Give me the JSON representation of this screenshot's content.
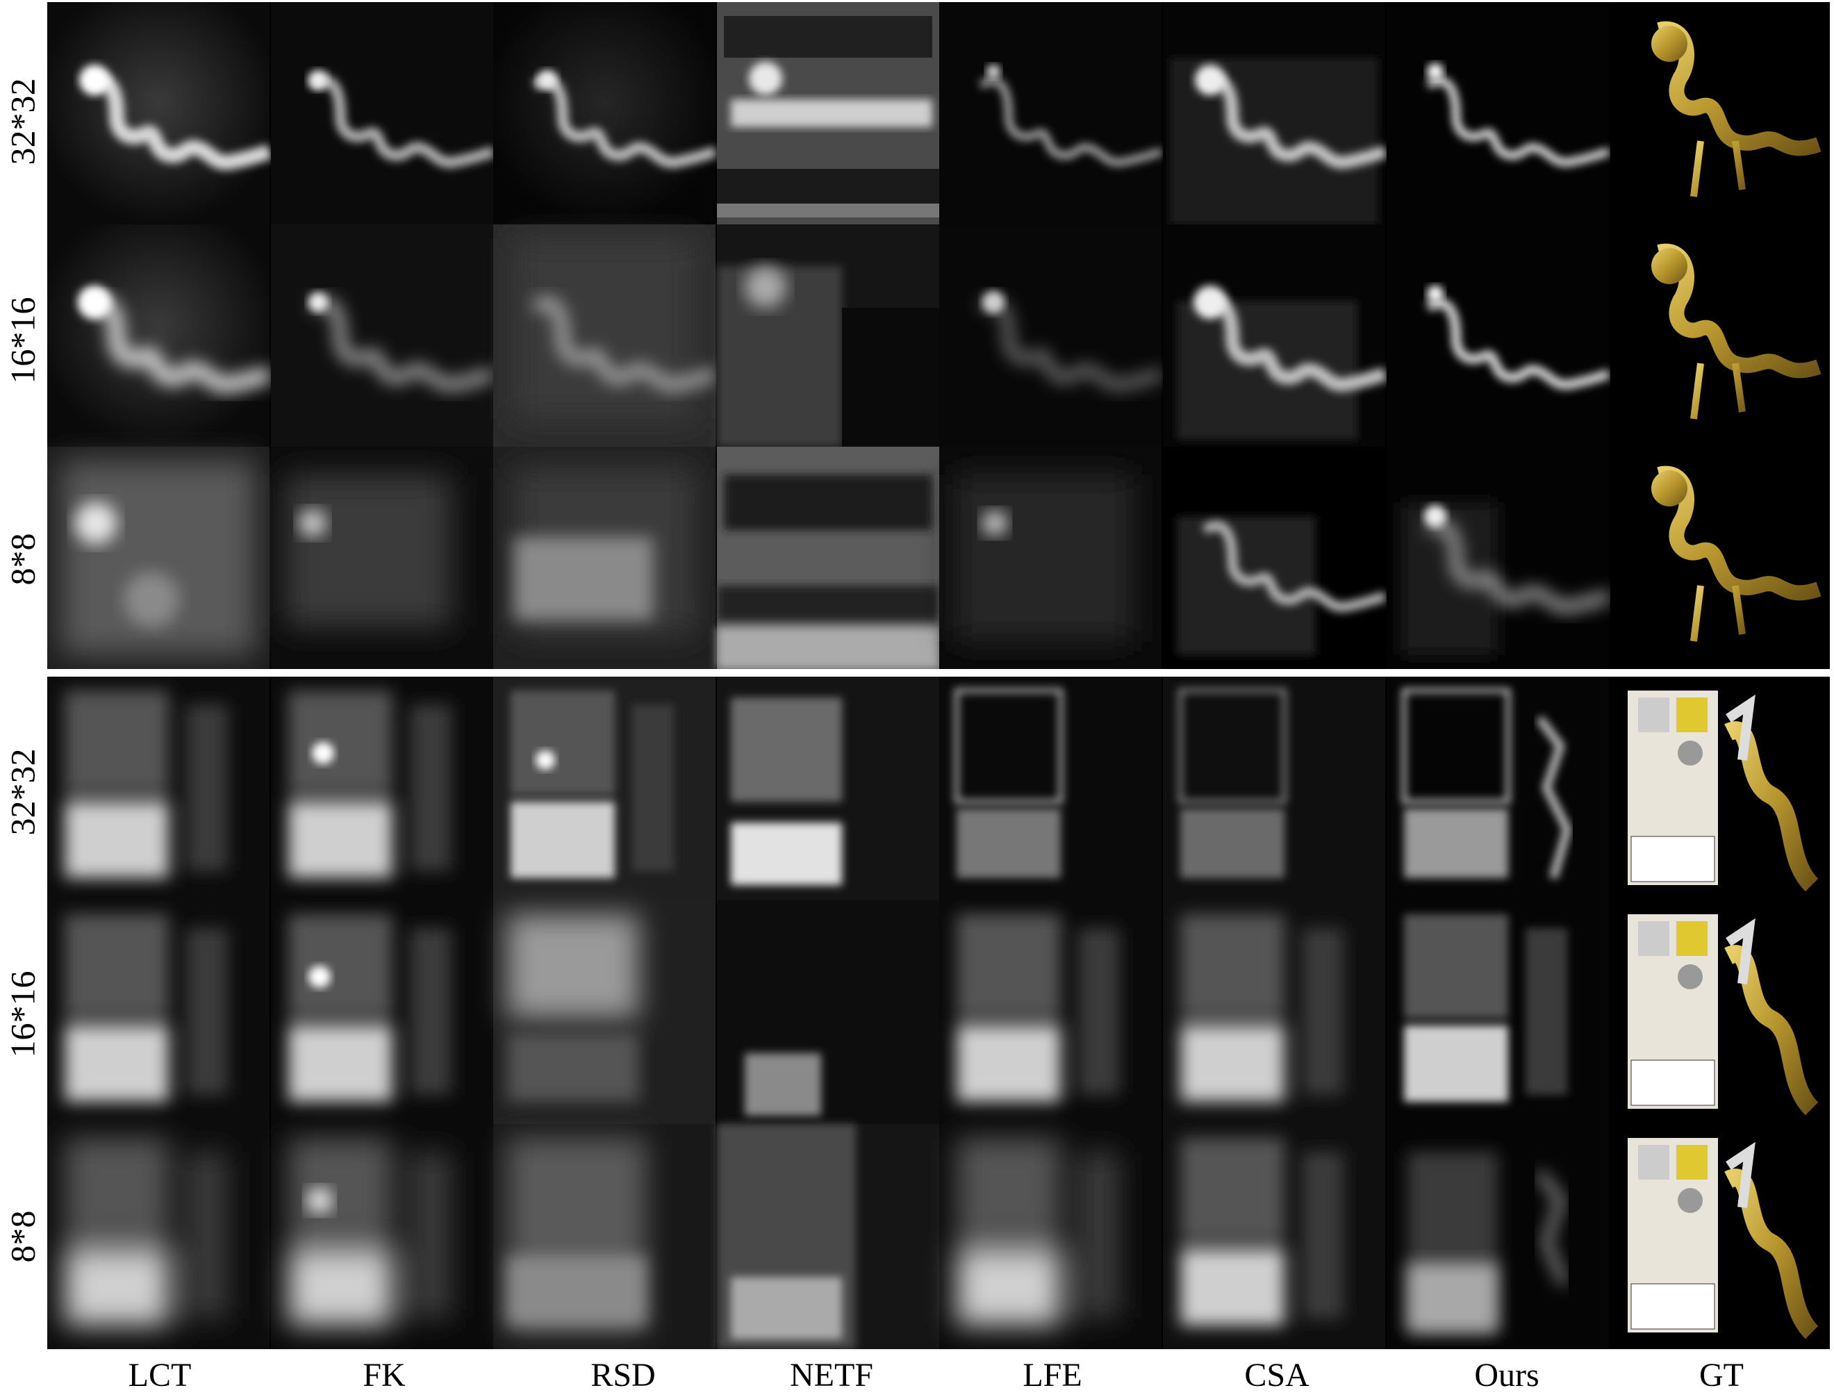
{
  "columns": [
    "LCT",
    "FK",
    "RSD",
    "NETF",
    "LFE",
    "CSA",
    "Ours",
    "GT"
  ],
  "groups": [
    {
      "name": "dragon",
      "rows": [
        "32*32",
        "16*16",
        "8*8"
      ]
    },
    {
      "name": "bookshelf",
      "rows": [
        "32*32",
        "16*16",
        "8*8"
      ]
    }
  ],
  "colors": {
    "background": "#ffffff",
    "panel": "#000000",
    "gt_gold": "#b8962e",
    "shelf": "#e8e4da"
  }
}
